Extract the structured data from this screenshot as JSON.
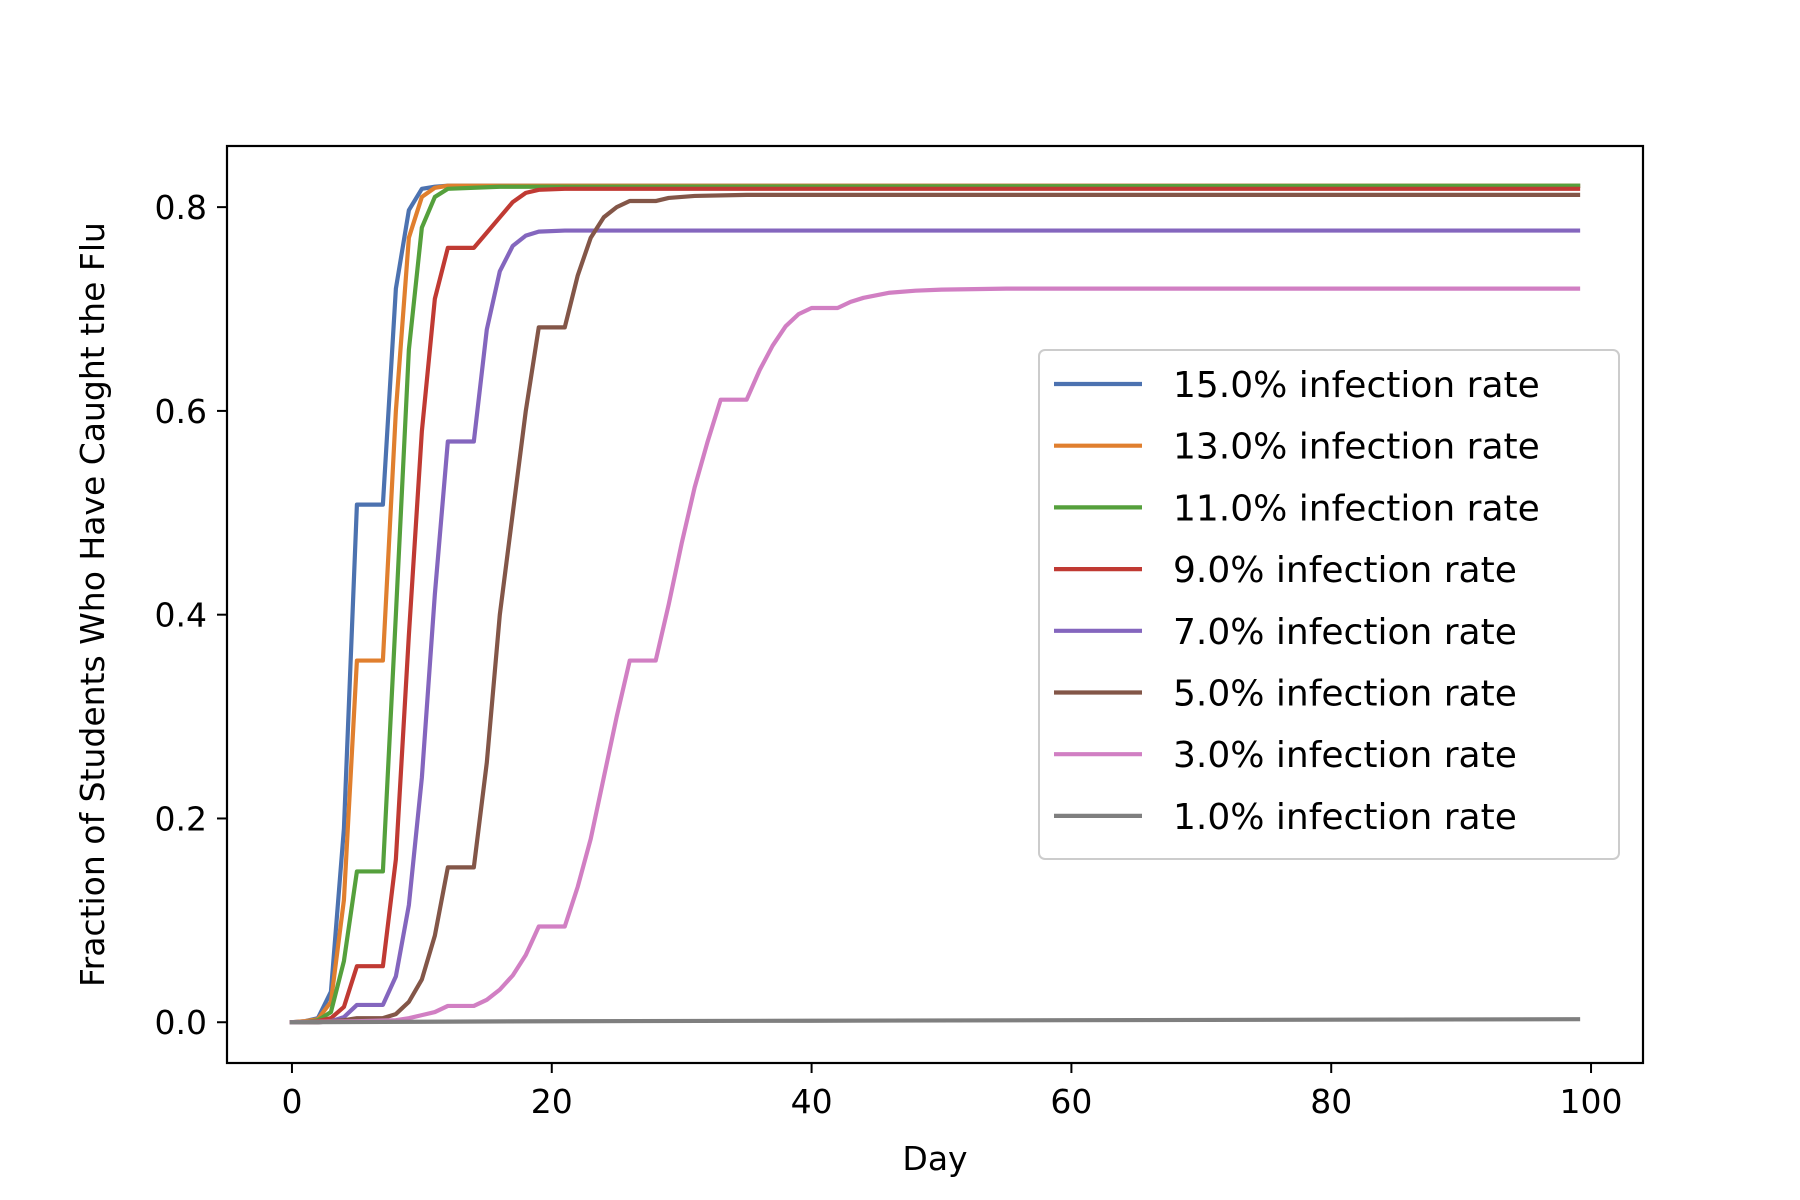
{
  "chart_data": {
    "type": "line",
    "title": "",
    "xlabel": "Day",
    "ylabel": "Fraction of Students Who Have Caught the Flu",
    "xlim": [
      -5,
      104
    ],
    "ylim": [
      -0.04,
      0.86
    ],
    "xticks": [
      0,
      20,
      40,
      60,
      80,
      100
    ],
    "yticks": [
      0.0,
      0.2,
      0.4,
      0.6,
      0.8
    ],
    "ytick_labels": [
      "0.0",
      "0.2",
      "0.4",
      "0.6",
      "0.8"
    ],
    "grid": false,
    "legend_position": "center-right",
    "x_range": [
      0,
      99
    ],
    "series": [
      {
        "name": "15.0% infection rate",
        "color": "#4c72b0",
        "points": [
          [
            0,
            0.0
          ],
          [
            1,
            0.001
          ],
          [
            2,
            0.004
          ],
          [
            3,
            0.03
          ],
          [
            4,
            0.19
          ],
          [
            5,
            0.508
          ],
          [
            6,
            0.508
          ],
          [
            7,
            0.508
          ],
          [
            8,
            0.72
          ],
          [
            9,
            0.797
          ],
          [
            10,
            0.818
          ],
          [
            11,
            0.82
          ],
          [
            12,
            0.821
          ],
          [
            99,
            0.821
          ]
        ]
      },
      {
        "name": "13.0% infection rate",
        "color": "#e07f2e",
        "points": [
          [
            0,
            0.0
          ],
          [
            1,
            0.001
          ],
          [
            2,
            0.003
          ],
          [
            3,
            0.02
          ],
          [
            4,
            0.12
          ],
          [
            5,
            0.355
          ],
          [
            6,
            0.355
          ],
          [
            7,
            0.355
          ],
          [
            8,
            0.6
          ],
          [
            9,
            0.77
          ],
          [
            10,
            0.81
          ],
          [
            11,
            0.819
          ],
          [
            12,
            0.821
          ],
          [
            99,
            0.821
          ]
        ]
      },
      {
        "name": "11.0% infection rate",
        "color": "#55a03c",
        "points": [
          [
            0,
            0.0
          ],
          [
            1,
            0.0
          ],
          [
            2,
            0.002
          ],
          [
            3,
            0.01
          ],
          [
            4,
            0.06
          ],
          [
            5,
            0.148
          ],
          [
            6,
            0.148
          ],
          [
            7,
            0.148
          ],
          [
            8,
            0.4
          ],
          [
            9,
            0.66
          ],
          [
            10,
            0.78
          ],
          [
            11,
            0.81
          ],
          [
            12,
            0.818
          ],
          [
            14,
            0.819
          ],
          [
            16,
            0.82
          ],
          [
            99,
            0.821
          ]
        ]
      },
      {
        "name": "9.0% infection rate",
        "color": "#c03a33",
        "points": [
          [
            0,
            0.0
          ],
          [
            1,
            0.0
          ],
          [
            2,
            0.001
          ],
          [
            3,
            0.004
          ],
          [
            4,
            0.015
          ],
          [
            5,
            0.055
          ],
          [
            6,
            0.055
          ],
          [
            7,
            0.055
          ],
          [
            8,
            0.16
          ],
          [
            9,
            0.38
          ],
          [
            10,
            0.58
          ],
          [
            11,
            0.71
          ],
          [
            12,
            0.76
          ],
          [
            13,
            0.76
          ],
          [
            14,
            0.76
          ],
          [
            15,
            0.775
          ],
          [
            16,
            0.79
          ],
          [
            17,
            0.805
          ],
          [
            18,
            0.814
          ],
          [
            19,
            0.817
          ],
          [
            21,
            0.818
          ],
          [
            99,
            0.818
          ]
        ]
      },
      {
        "name": "7.0% infection rate",
        "color": "#8466be",
        "points": [
          [
            0,
            0.0
          ],
          [
            1,
            0.0
          ],
          [
            2,
            0.0
          ],
          [
            3,
            0.001
          ],
          [
            4,
            0.005
          ],
          [
            5,
            0.017
          ],
          [
            6,
            0.017
          ],
          [
            7,
            0.017
          ],
          [
            8,
            0.045
          ],
          [
            9,
            0.115
          ],
          [
            10,
            0.24
          ],
          [
            11,
            0.42
          ],
          [
            12,
            0.57
          ],
          [
            13,
            0.57
          ],
          [
            14,
            0.57
          ],
          [
            15,
            0.68
          ],
          [
            16,
            0.737
          ],
          [
            17,
            0.762
          ],
          [
            18,
            0.772
          ],
          [
            19,
            0.776
          ],
          [
            21,
            0.777
          ],
          [
            99,
            0.777
          ]
        ]
      },
      {
        "name": "5.0% infection rate",
        "color": "#835648",
        "points": [
          [
            0,
            0.0
          ],
          [
            2,
            0.0
          ],
          [
            3,
            0.001
          ],
          [
            4,
            0.002
          ],
          [
            5,
            0.004
          ],
          [
            6,
            0.004
          ],
          [
            7,
            0.004
          ],
          [
            8,
            0.008
          ],
          [
            9,
            0.02
          ],
          [
            10,
            0.042
          ],
          [
            11,
            0.085
          ],
          [
            12,
            0.152
          ],
          [
            13,
            0.152
          ],
          [
            14,
            0.152
          ],
          [
            15,
            0.255
          ],
          [
            16,
            0.4
          ],
          [
            17,
            0.5
          ],
          [
            18,
            0.6
          ],
          [
            19,
            0.682
          ],
          [
            20,
            0.682
          ],
          [
            21,
            0.682
          ],
          [
            22,
            0.733
          ],
          [
            23,
            0.77
          ],
          [
            24,
            0.79
          ],
          [
            25,
            0.8
          ],
          [
            26,
            0.806
          ],
          [
            27,
            0.806
          ],
          [
            28,
            0.806
          ],
          [
            29,
            0.809
          ],
          [
            31,
            0.811
          ],
          [
            35,
            0.812
          ],
          [
            99,
            0.812
          ]
        ]
      },
      {
        "name": "3.0% infection rate",
        "color": "#d17fc3",
        "points": [
          [
            0,
            0.0
          ],
          [
            5,
            0.001
          ],
          [
            8,
            0.002
          ],
          [
            9,
            0.004
          ],
          [
            10,
            0.007
          ],
          [
            11,
            0.01
          ],
          [
            12,
            0.016
          ],
          [
            13,
            0.016
          ],
          [
            14,
            0.016
          ],
          [
            15,
            0.022
          ],
          [
            16,
            0.032
          ],
          [
            17,
            0.046
          ],
          [
            18,
            0.066
          ],
          [
            19,
            0.094
          ],
          [
            20,
            0.094
          ],
          [
            21,
            0.094
          ],
          [
            22,
            0.133
          ],
          [
            23,
            0.18
          ],
          [
            24,
            0.24
          ],
          [
            25,
            0.3
          ],
          [
            26,
            0.355
          ],
          [
            27,
            0.355
          ],
          [
            28,
            0.355
          ],
          [
            29,
            0.41
          ],
          [
            30,
            0.47
          ],
          [
            31,
            0.525
          ],
          [
            32,
            0.57
          ],
          [
            33,
            0.611
          ],
          [
            34,
            0.611
          ],
          [
            35,
            0.611
          ],
          [
            36,
            0.64
          ],
          [
            37,
            0.664
          ],
          [
            38,
            0.683
          ],
          [
            39,
            0.695
          ],
          [
            40,
            0.701
          ],
          [
            41,
            0.701
          ],
          [
            42,
            0.701
          ],
          [
            43,
            0.707
          ],
          [
            44,
            0.711
          ],
          [
            46,
            0.716
          ],
          [
            48,
            0.718
          ],
          [
            50,
            0.719
          ],
          [
            55,
            0.72
          ],
          [
            99,
            0.72
          ]
        ]
      },
      {
        "name": "1.0% infection rate",
        "color": "#7f7f7f",
        "points": [
          [
            0,
            0.0
          ],
          [
            10,
            0.0005
          ],
          [
            20,
            0.001
          ],
          [
            40,
            0.0015
          ],
          [
            60,
            0.002
          ],
          [
            80,
            0.0025
          ],
          [
            99,
            0.003
          ]
        ]
      }
    ]
  }
}
